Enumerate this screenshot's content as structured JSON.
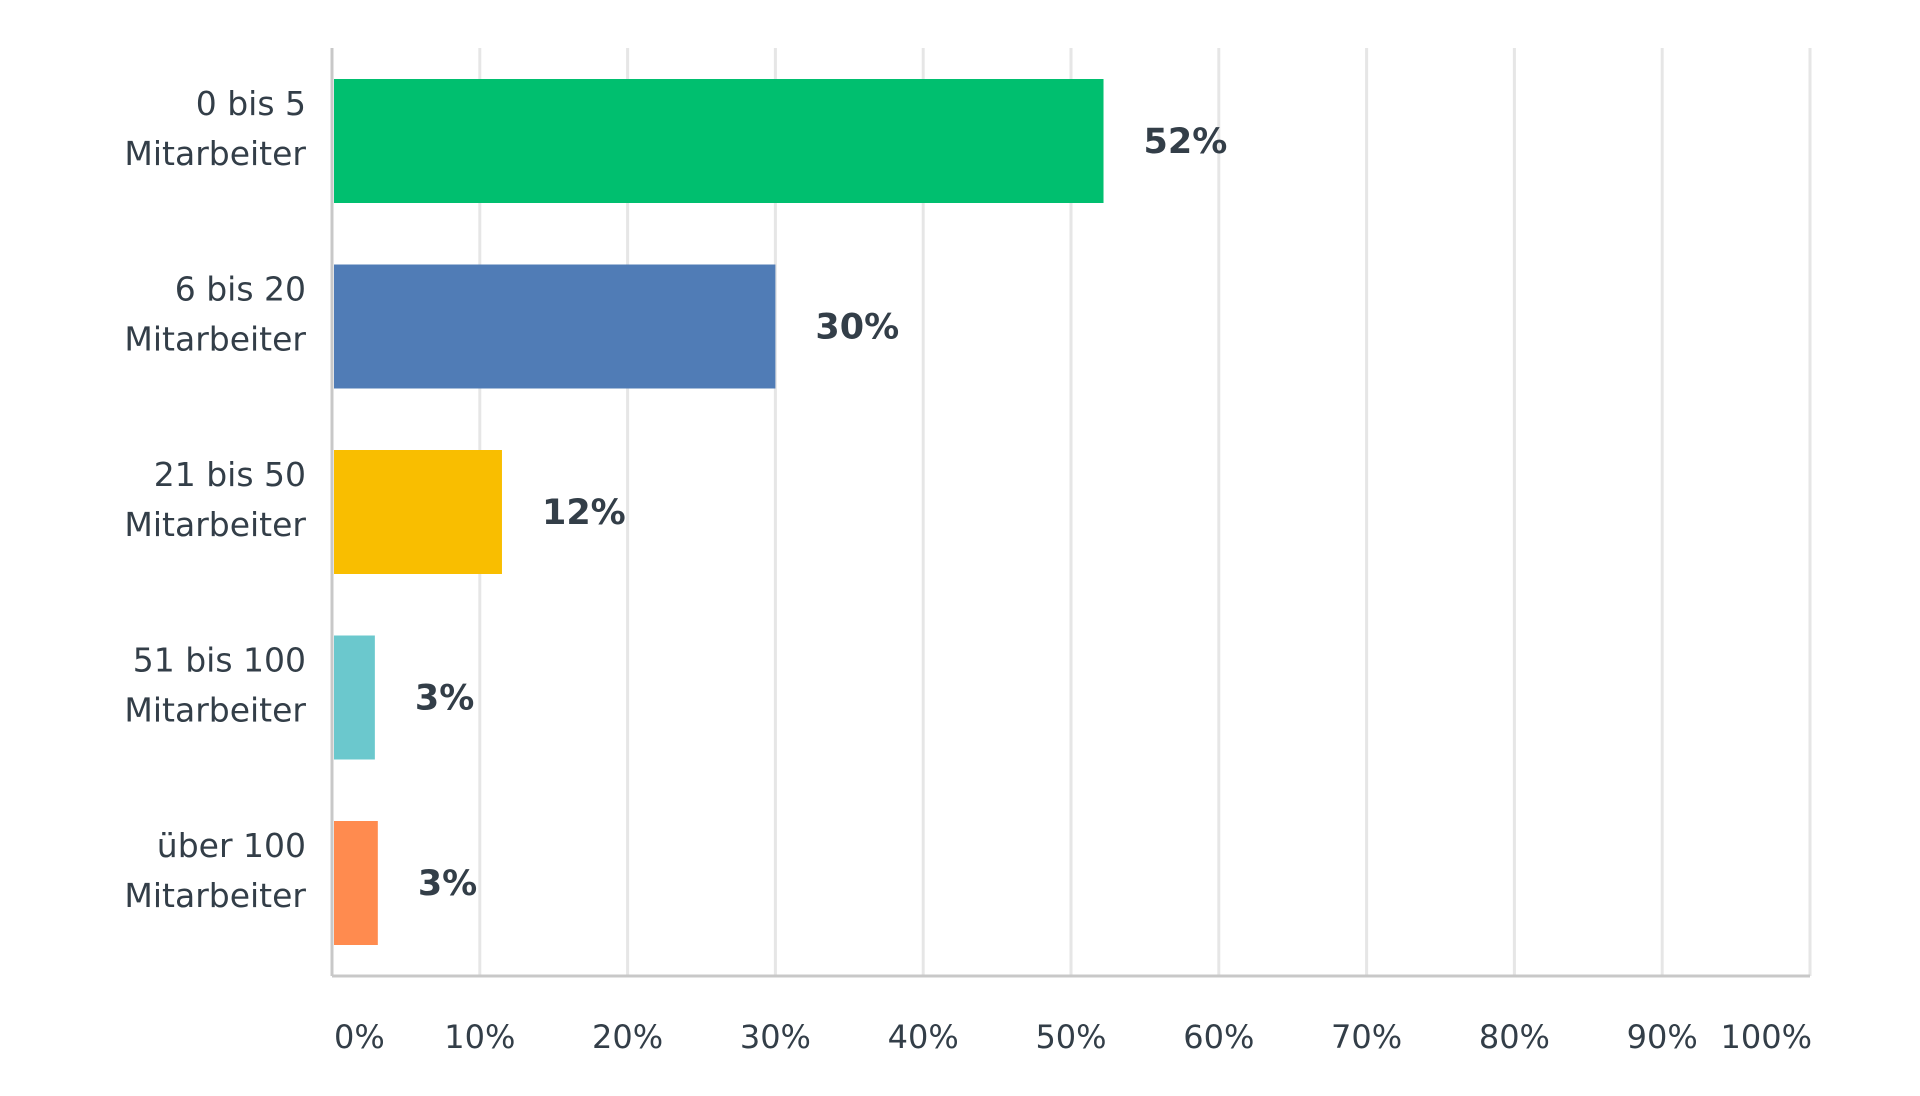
{
  "chart_data": {
    "type": "bar",
    "orientation": "horizontal",
    "categories": [
      [
        "0 bis 5",
        "Mitarbeiter"
      ],
      [
        "6 bis 20",
        "Mitarbeiter"
      ],
      [
        "21 bis 50",
        "Mitarbeiter"
      ],
      [
        "51 bis 100",
        "Mitarbeiter"
      ],
      [
        "über 100",
        "Mitarbeiter"
      ]
    ],
    "values": [
      52.2,
      30.0,
      11.5,
      2.9,
      3.1
    ],
    "data_labels": [
      "52%",
      "30%",
      "12%",
      "3%",
      "3%"
    ],
    "colors": [
      "#00bf6f",
      "#507cb6",
      "#f9be00",
      "#6bc8cd",
      "#ff8b4f"
    ],
    "xlim": [
      0,
      100
    ],
    "xticks": [
      0,
      10,
      20,
      30,
      40,
      50,
      60,
      70,
      80,
      90,
      100
    ],
    "xtick_labels": [
      "0%",
      "10%",
      "20%",
      "30%",
      "40%",
      "50%",
      "60%",
      "70%",
      "80%",
      "90%",
      "100%"
    ],
    "grid": true,
    "legend": "none"
  }
}
